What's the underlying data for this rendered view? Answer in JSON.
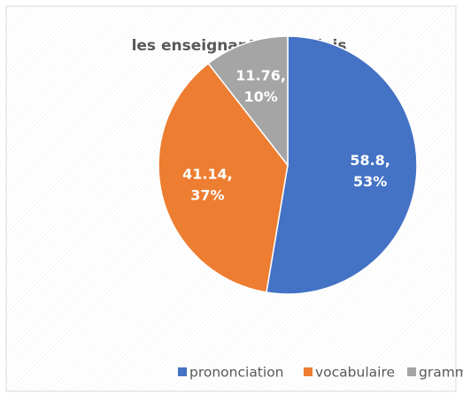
{
  "chart_data": {
    "type": "pie",
    "title": "les enseignants d'anglais",
    "categories": [
      "prononciation",
      "vocabulaire",
      "grammaire"
    ],
    "values": [
      58.8,
      41.14,
      11.76
    ],
    "value_labels": [
      [
        "58.8,",
        "53%"
      ],
      [
        "41.14,",
        "37%"
      ],
      [
        "11.76,",
        "10%"
      ]
    ],
    "colors": [
      "#4472c4",
      "#ed7d31",
      "#a5a5a5"
    ],
    "legend": "bottom"
  }
}
